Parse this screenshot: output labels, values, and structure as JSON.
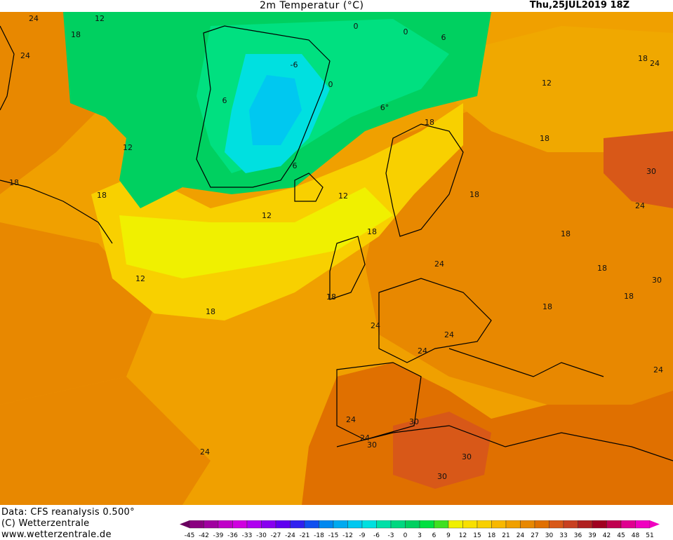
{
  "title": "2m Temperatur (°C)",
  "valid_time": "Thu,25JUL2019 18Z",
  "credits": {
    "data": "Data: CFS reanalysis 0.500°",
    "copyright": "(C) Wetterzentrale",
    "url": "www.wetterzentrale.de"
  },
  "legend": {
    "ticks": [
      "-45",
      "-42",
      "-39",
      "-36",
      "-33",
      "-30",
      "-27",
      "-24",
      "-21",
      "-18",
      "-15",
      "-12",
      "-9",
      "-6",
      "-3",
      "0",
      "3",
      "6",
      "9",
      "12",
      "15",
      "18",
      "21",
      "24",
      "27",
      "30",
      "33",
      "36",
      "39",
      "42",
      "45",
      "48",
      "51"
    ],
    "colors": [
      "#6a0060",
      "#8a0080",
      "#a000a0",
      "#c000c8",
      "#d000e0",
      "#b000f0",
      "#8800f0",
      "#6000f0",
      "#3020f0",
      "#1050f0",
      "#0088f0",
      "#00aaf0",
      "#00c8f0",
      "#00e0e0",
      "#00e0a8",
      "#00d880",
      "#00d060",
      "#00e040",
      "#40e020",
      "#f0f000",
      "#f8e000",
      "#f8d000",
      "#f8b800",
      "#f0a000",
      "#e88800",
      "#e07000",
      "#d85818",
      "#c84020",
      "#b02020",
      "#a00020",
      "#c00050",
      "#e00090",
      "#f000c0"
    ]
  },
  "isotherm_labels": [
    {
      "text": "24",
      "name": "label-24-nw"
    },
    {
      "text": "12",
      "name": "label-12-nw"
    },
    {
      "text": "18",
      "name": "label-18-nw"
    },
    {
      "text": "24",
      "name": "label-24-w"
    },
    {
      "text": "0",
      "name": "label-0-arctic"
    },
    {
      "text": "0",
      "name": "label-0-svalbard"
    },
    {
      "text": "6",
      "name": "label-6-arctic"
    },
    {
      "text": "-6",
      "name": "label-minus6-greenland"
    },
    {
      "text": "0",
      "name": "label-0-greenland-e"
    },
    {
      "text": "6",
      "name": "label-6-greenland-w"
    },
    {
      "text": "6°",
      "name": "label-6-iceland-n"
    },
    {
      "text": "12",
      "name": "label-12-baffin"
    },
    {
      "text": "6",
      "name": "label-6-greenland-s"
    },
    {
      "text": "18",
      "name": "label-18-labrador"
    },
    {
      "text": "18",
      "name": "label-18-newfoundland"
    },
    {
      "text": "12",
      "name": "label-12-atlantic-n"
    },
    {
      "text": "12",
      "name": "label-12-iceland"
    },
    {
      "text": "12",
      "name": "label-12-atlantic-w"
    },
    {
      "text": "18",
      "name": "label-18-atlantic-mid"
    },
    {
      "text": "18",
      "name": "label-18-norway"
    },
    {
      "text": "18",
      "name": "label-18-uk"
    },
    {
      "text": "18",
      "name": "label-18-ireland"
    },
    {
      "text": "18",
      "name": "label-18-baltic"
    },
    {
      "text": "18",
      "name": "label-18-russia-n"
    },
    {
      "text": "24",
      "name": "label-24-russia-ne"
    },
    {
      "text": "12",
      "name": "label-12-barents"
    },
    {
      "text": "18",
      "name": "label-18-russia-mid"
    },
    {
      "text": "30",
      "name": "label-30-russia-e"
    },
    {
      "text": "24",
      "name": "label-24-russia-e"
    },
    {
      "text": "18",
      "name": "label-18-belarus"
    },
    {
      "text": "18",
      "name": "label-18-ukraine"
    },
    {
      "text": "30",
      "name": "label-30-caspian"
    },
    {
      "text": "18",
      "name": "label-18-black-sea"
    },
    {
      "text": "18",
      "name": "label-18-balkans"
    },
    {
      "text": "24",
      "name": "label-24-germany"
    },
    {
      "text": "24",
      "name": "label-24-france"
    },
    {
      "text": "24",
      "name": "label-24-alps"
    },
    {
      "text": "24",
      "name": "label-24-mediterranean"
    },
    {
      "text": "24",
      "name": "label-24-turkey"
    },
    {
      "text": "24",
      "name": "label-24-atlantic-s"
    },
    {
      "text": "24",
      "name": "label-24-portugal"
    },
    {
      "text": "24",
      "name": "label-24-morocco-coast"
    },
    {
      "text": "30",
      "name": "label-30-spain"
    },
    {
      "text": "30",
      "name": "label-30-morocco"
    },
    {
      "text": "30",
      "name": "label-30-algeria"
    },
    {
      "text": "30",
      "name": "label-30-libya"
    }
  ]
}
